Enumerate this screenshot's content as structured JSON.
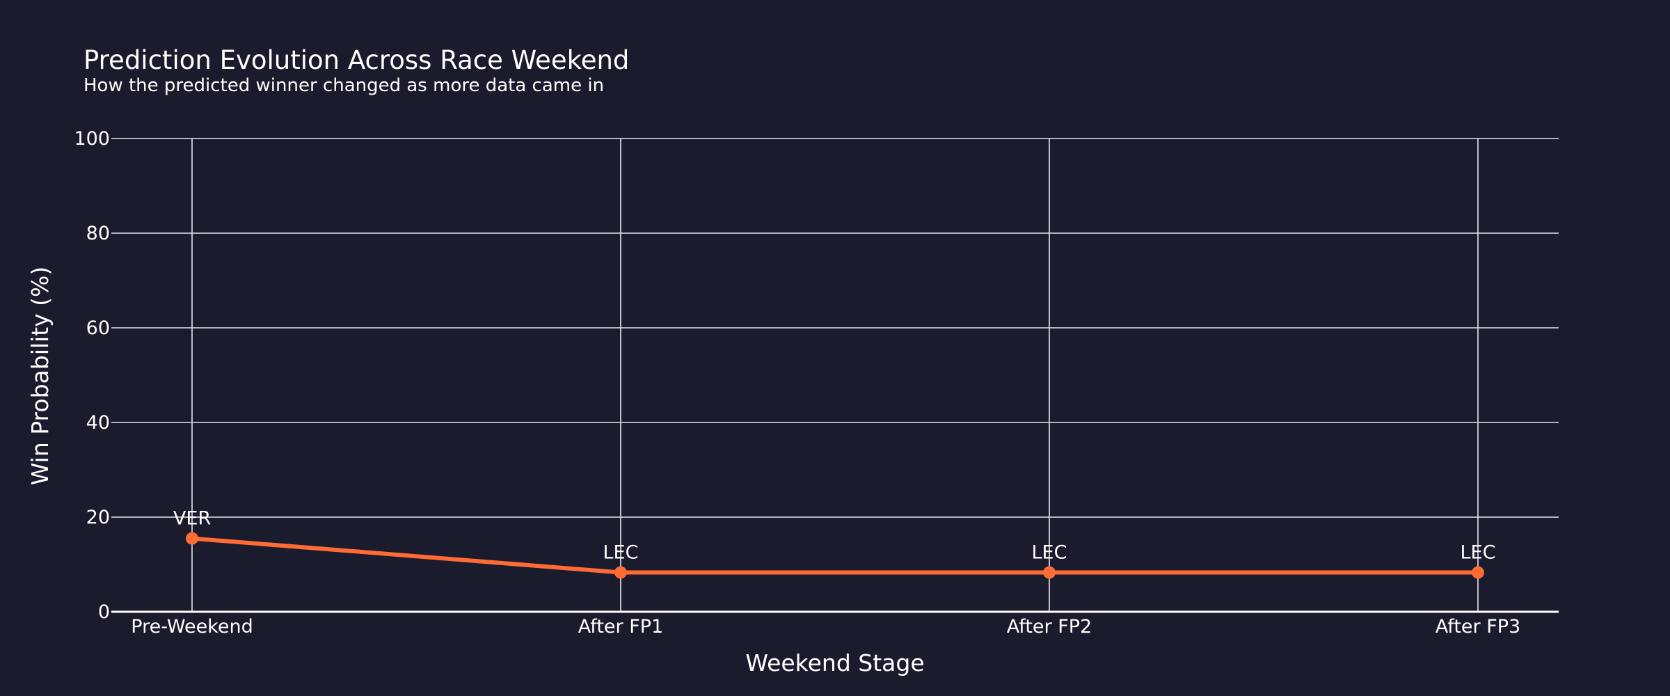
{
  "chart_data": {
    "type": "line",
    "title": "Prediction Evolution Across Race Weekend",
    "subtitle": "How the predicted winner changed as more data came in",
    "xlabel": "Weekend Stage",
    "ylabel": "Win Probability (%)",
    "categories": [
      "Pre-Weekend",
      "After FP1",
      "After FP2",
      "After FP3"
    ],
    "ylim": [
      0,
      100
    ],
    "yticks": [
      0,
      20,
      40,
      60,
      80,
      100
    ],
    "grid": true,
    "legend": "none",
    "series": [
      {
        "values": [
          15.5,
          8.3,
          8.3,
          8.3
        ],
        "point_labels": [
          "VER",
          "LEC",
          "LEC",
          "LEC"
        ],
        "color": "#ff6b35"
      }
    ]
  },
  "colors": {
    "background": "#1b1b2e",
    "grid": "#e6e6ee",
    "text": "#ffffff",
    "line": "#ff6b35"
  }
}
